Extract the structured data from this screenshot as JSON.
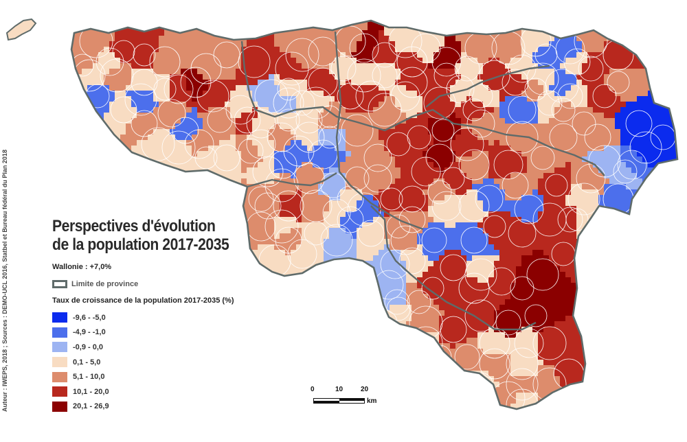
{
  "title_line1": "Perspectives d'évolution",
  "title_line2": "de la population 2017-2035",
  "region_label": "Wallonie : +7,0%",
  "province_legend_label": "Limite de province",
  "legend_title": "Taux de croissance de la population 2017-2035 (%)",
  "legend": [
    {
      "label": "-9,6 - -5,0",
      "color": "#0b2bee"
    },
    {
      "label": "-4,9 - -1,0",
      "color": "#4c6fec"
    },
    {
      "label": "-0,9 - 0,0",
      "color": "#9db4f2"
    },
    {
      "label": "0,1 - 5,0",
      "color": "#f8dcc2"
    },
    {
      "label": "5,1 - 10,0",
      "color": "#dd8c6c"
    },
    {
      "label": "10,1 - 20,0",
      "color": "#b8281e"
    },
    {
      "label": "20,1 - 26,9",
      "color": "#8b0000"
    }
  ],
  "credits": "Auteur : IWEPS, 2018 ; Sources : DEMO-UCL 2016, Statbel et Bureau fédéral du Plan 2018",
  "scale": {
    "tick0": "0",
    "tick1": "10",
    "tick2": "20",
    "unit": "km"
  },
  "colors": {
    "province_border": "#5f6b6a",
    "commune_border": "#ffffff"
  }
}
